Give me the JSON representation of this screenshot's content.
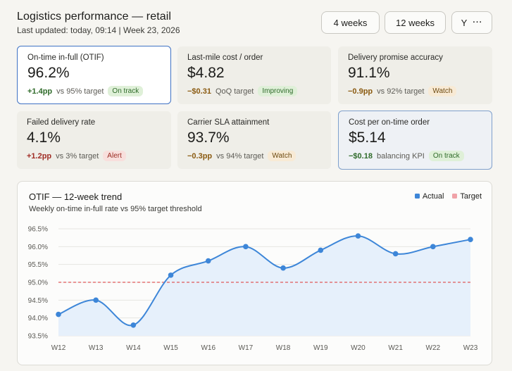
{
  "header": {
    "title": "Logistics performance — retail",
    "subtitle": "Last updated: today, 09:14 | Week 23, 2026",
    "btn_4w": "4 weeks",
    "btn_12w": "12 weeks",
    "btn_more": "Y"
  },
  "kpis": [
    {
      "label": "On-time in-full (OTIF)",
      "value": "96.2%",
      "delta": "+1.4pp",
      "note": "vs 95% target",
      "badge": "On track"
    },
    {
      "label": "Last-mile cost / order",
      "value": "$4.82",
      "delta": "−$0.31",
      "note": "QoQ target",
      "badge": "Improving"
    },
    {
      "label": "Delivery promise accuracy",
      "value": "91.1%",
      "delta": "−0.9pp",
      "note": "vs 92% target",
      "badge": "Watch"
    },
    {
      "label": "Failed delivery rate",
      "value": "4.1%",
      "delta": "+1.2pp",
      "note": "vs 3% target",
      "badge": "Alert"
    },
    {
      "label": "Carrier SLA attainment",
      "value": "93.7%",
      "delta": "−0.3pp",
      "note": "vs 94% target",
      "badge": "Watch"
    },
    {
      "label": "Cost per on-time order",
      "value": "$5.14",
      "delta": "−$0.18",
      "note": "balancing KPI",
      "badge": "On track"
    }
  ],
  "colors": {
    "actual": "#3d86d8",
    "target": "#e05a5a",
    "good": "#2f6b2a",
    "warn": "#8a5a10",
    "bad": "#a02c24"
  },
  "chart_data": {
    "type": "line",
    "title": "OTIF — 12-week trend",
    "subtitle": "Weekly on-time in-full rate vs 95% target threshold",
    "categories": [
      "W12",
      "W13",
      "W14",
      "W15",
      "W16",
      "W17",
      "W18",
      "W19",
      "W20",
      "W21",
      "W22",
      "W23"
    ],
    "series": [
      {
        "name": "Actual",
        "values": [
          94.1,
          94.5,
          93.8,
          95.2,
          95.6,
          96.0,
          95.4,
          95.9,
          96.3,
          95.8,
          96.0,
          96.2
        ]
      },
      {
        "name": "Target",
        "values": [
          95,
          95,
          95,
          95,
          95,
          95,
          95,
          95,
          95,
          95,
          95,
          95
        ]
      }
    ],
    "yticks": [
      "96.5%",
      "96.0%",
      "95.5%",
      "95.0%",
      "94.5%",
      "94.0%",
      "93.5%"
    ],
    "ylim": [
      93.5,
      96.5
    ],
    "grid": true,
    "legend_position": "top-right"
  }
}
